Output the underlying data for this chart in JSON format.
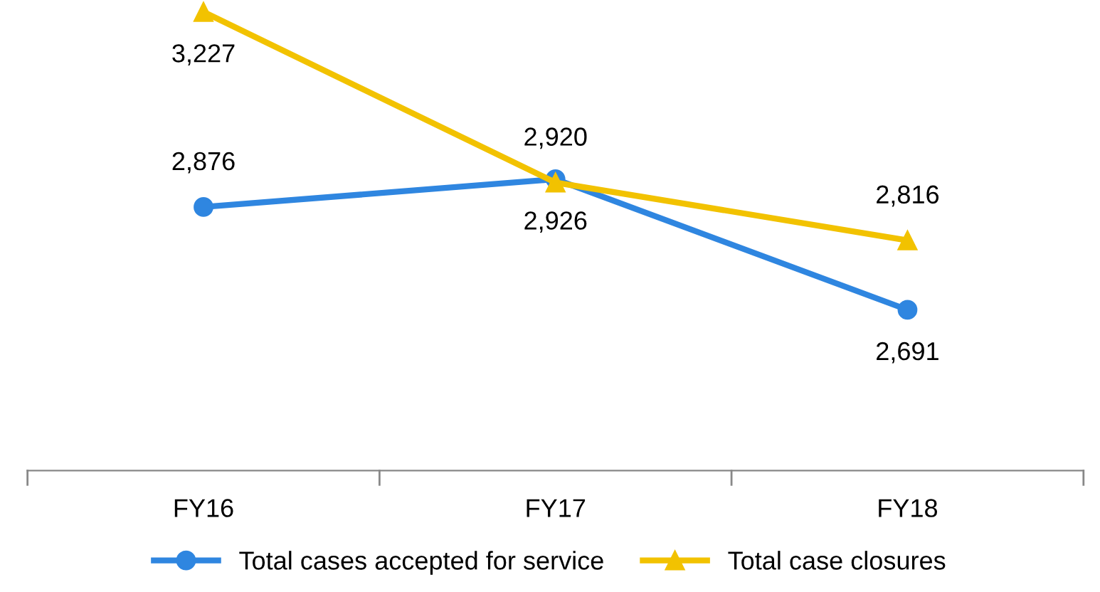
{
  "chart_data": {
    "type": "line",
    "categories": [
      "FY16",
      "FY17",
      "FY18"
    ],
    "series": [
      {
        "name": "Total cases accepted for service",
        "color": "#2f86e0",
        "marker": "circle",
        "values": [
          2876,
          2926,
          2691
        ],
        "value_labels": [
          "2,876",
          "2,926",
          "2,691"
        ]
      },
      {
        "name": "Total case closures",
        "color": "#f2c200",
        "marker": "triangle",
        "values": [
          3227,
          2920,
          2816
        ],
        "value_labels": [
          "3,227",
          "2,920",
          "2,816"
        ]
      }
    ],
    "legend": "bottom",
    "grid": false,
    "line_style": "solid"
  }
}
